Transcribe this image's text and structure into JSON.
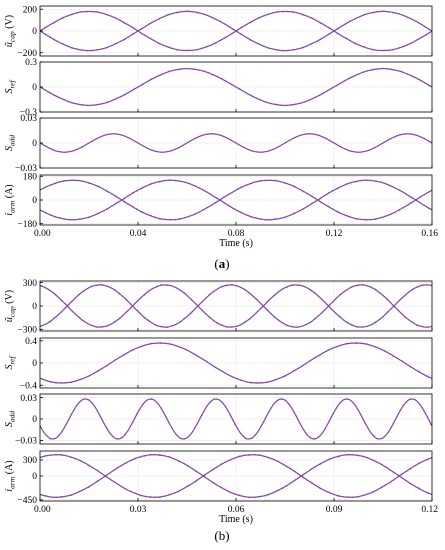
{
  "figure": {
    "captions": [
      {
        "prefix": "(",
        "letter": "a",
        "suffix": ")",
        "bold": true
      },
      {
        "prefix": "(",
        "letter": "b",
        "suffix": ")",
        "bold": false
      }
    ]
  },
  "chart_data": [
    {
      "type": "line",
      "panel": "(a)",
      "xlabel": "Time (s)",
      "xlim": [
        0.0,
        0.16
      ],
      "xticks": [
        "0.00",
        "0.04",
        "0.08",
        "0.12",
        "0.16"
      ],
      "subplots": [
        {
          "ylabel": "ũ_cap (V)",
          "ylabel_parts": {
            "main": "ũ",
            "sub": "cap",
            "unit": " (V)"
          },
          "ylim": [
            -230,
            230
          ],
          "yticks": [
            200,
            0,
            -200
          ],
          "ytick_labels": [
            "200",
            "0",
            "−200"
          ],
          "series": [
            {
              "values_formula": "180*sin(2*pi*12.5*t)",
              "amplitude": 180,
              "frequency_hz": 12.5,
              "phase_deg": 0,
              "color": "#3b5cff"
            },
            {
              "values_formula": "-180*sin(2*pi*12.5*t)",
              "amplitude": 180,
              "frequency_hz": 12.5,
              "phase_deg": 180,
              "color": "#3b5cff"
            }
          ],
          "overlay_color": "#e03030"
        },
        {
          "ylabel": "S_ref",
          "ylabel_parts": {
            "main": "S",
            "sub": "ref",
            "unit": ""
          },
          "ylim": [
            -0.3,
            0.3
          ],
          "yticks": [
            0.3,
            0,
            -0.3
          ],
          "ytick_labels": [
            "0.3",
            "0",
            "−0.3"
          ],
          "series": [
            {
              "amplitude": 0.22,
              "frequency_hz": 12.5,
              "phase_deg": 180,
              "color": "#3b5cff"
            }
          ],
          "overlay_color": "#e03030"
        },
        {
          "ylabel": "S_add",
          "ylabel_parts": {
            "main": "S",
            "sub": "add",
            "unit": ""
          },
          "ylim": [
            -0.03,
            0.03
          ],
          "yticks": [
            0.03,
            0,
            -0.03
          ],
          "ytick_labels": [
            "0.03",
            "0",
            "−0.03"
          ],
          "series": [
            {
              "amplitude": 0.011,
              "frequency_hz": 25,
              "phase_deg": 180,
              "color": "#3b5cff"
            }
          ],
          "overlay_color": "#e03030"
        },
        {
          "ylabel": "i_arm (A)",
          "ylabel_parts": {
            "main": "i",
            "sub": "arm",
            "unit": " (A)"
          },
          "ylim": [
            -190,
            190
          ],
          "yticks": [
            180,
            0,
            -180
          ],
          "ytick_labels": [
            "180",
            "0",
            "−180"
          ],
          "series": [
            {
              "amplitude": 150,
              "frequency_hz": 12.5,
              "phase_deg": 30,
              "color": "#3b5cff"
            },
            {
              "amplitude": 150,
              "frequency_hz": 12.5,
              "phase_deg": 210,
              "color": "#3b5cff"
            }
          ],
          "overlay_color": "#e03030"
        }
      ]
    },
    {
      "type": "line",
      "panel": "(b)",
      "xlabel": "Time (s)",
      "xlim": [
        0.0,
        0.12
      ],
      "xticks": [
        "0.00",
        "0.03",
        "0.06",
        "0.09",
        "0.12"
      ],
      "subplots": [
        {
          "ylabel": "ũ_cap (V)",
          "ylabel_parts": {
            "main": "ũ",
            "sub": "cap",
            "unit": " (V)"
          },
          "ylim": [
            -320,
            320
          ],
          "yticks": [
            300,
            0,
            -300
          ],
          "ytick_labels": [
            "300",
            "0",
            "−300"
          ],
          "series": [
            {
              "amplitude": 270,
              "frequency_hz": 25,
              "phase_deg": 105,
              "color": "#3b5cff"
            },
            {
              "amplitude": 270,
              "frequency_hz": 25,
              "phase_deg": 285,
              "color": "#3b5cff"
            }
          ],
          "overlay_color": "#e03030"
        },
        {
          "ylabel": "S_ref",
          "ylabel_parts": {
            "main": "S",
            "sub": "ref",
            "unit": ""
          },
          "ylim": [
            -0.45,
            0.45
          ],
          "yticks": [
            0.4,
            0,
            -0.4
          ],
          "ytick_labels": [
            "0.4",
            "0",
            "−0.4"
          ],
          "series": [
            {
              "amplitude": 0.36,
              "frequency_hz": 16.67,
              "phase_deg": 230,
              "color": "#3b5cff"
            }
          ],
          "overlay_color": "#e03030"
        },
        {
          "ylabel": "S_add",
          "ylabel_parts": {
            "main": "S",
            "sub": "add",
            "unit": ""
          },
          "ylim": [
            -0.035,
            0.035
          ],
          "yticks": [
            0.03,
            0,
            -0.03
          ],
          "ytick_labels": [
            "0.03",
            "0",
            "−0.03"
          ],
          "series": [
            {
              "amplitude": 0.028,
              "frequency_hz": 50,
              "phase_deg": 200,
              "color": "#3b5cff"
            }
          ],
          "overlay_color": "#e03030"
        },
        {
          "ylabel": "i_arm (A)",
          "ylabel_parts": {
            "main": "i",
            "sub": "arm",
            "unit": " (A)"
          },
          "ylim": [
            -470,
            470
          ],
          "yticks": [
            300,
            0,
            -450
          ],
          "ytick_labels": [
            "300",
            "0",
            "−450"
          ],
          "series": [
            {
              "amplitude": 400,
              "frequency_hz": 16.67,
              "phase_deg": 60,
              "color": "#3b5cff"
            },
            {
              "amplitude": 400,
              "frequency_hz": 16.67,
              "phase_deg": 240,
              "color": "#3b5cff"
            }
          ],
          "overlay_color": "#e03030"
        }
      ]
    }
  ]
}
